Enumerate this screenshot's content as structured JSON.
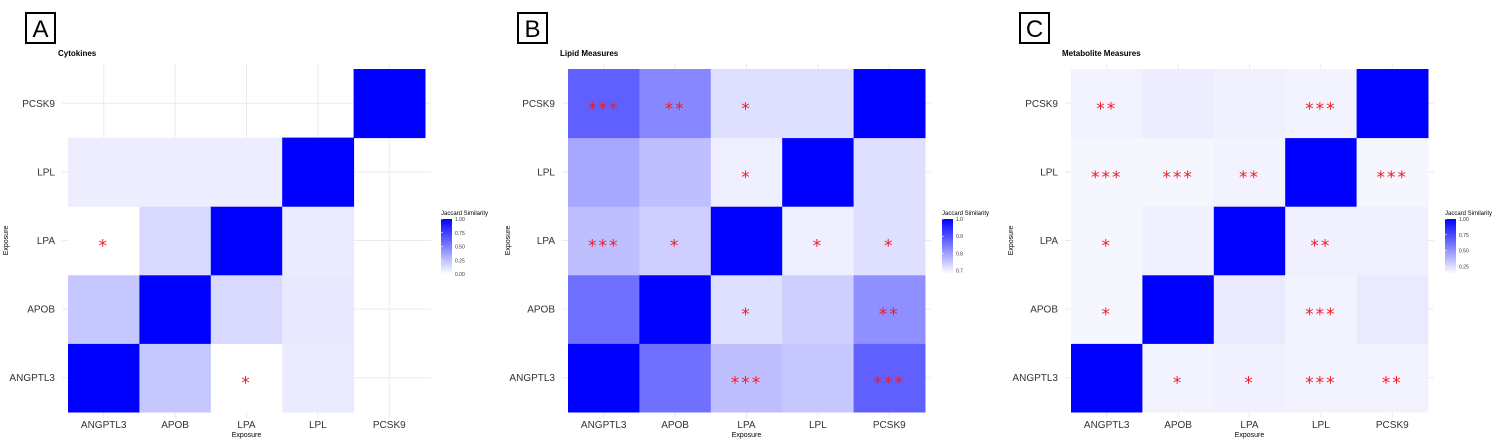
{
  "chart_data": [
    {
      "type": "heatmap",
      "panel_label": "A",
      "title": "Cytokines",
      "xlabel": "Exposure",
      "ylabel": "Exposure",
      "categories": [
        "ANGPTL3",
        "APOB",
        "LPA",
        "LPL",
        "PCSK9"
      ],
      "values": [
        [
          1.0,
          0.22,
          0.0,
          0.07,
          null
        ],
        [
          0.22,
          1.0,
          0.15,
          0.07,
          null
        ],
        [
          0.0,
          0.15,
          1.0,
          0.07,
          null
        ],
        [
          0.08,
          0.09,
          0.08,
          1.0,
          null
        ],
        [
          null,
          null,
          null,
          null,
          1.0
        ]
      ],
      "significance": [
        [
          "",
          "",
          "*",
          "",
          ""
        ],
        [
          "",
          "",
          "",
          "",
          ""
        ],
        [
          "*",
          "",
          "",
          "",
          ""
        ],
        [
          "",
          "",
          "",
          "",
          ""
        ],
        [
          "",
          "",
          "",
          "",
          ""
        ]
      ],
      "legend": {
        "title": "Jaccard Similarity",
        "min": 0.0,
        "max": 1.0,
        "ticks": [
          "1.00",
          "0.75",
          "0.50",
          "0.25",
          "0.00"
        ]
      }
    },
    {
      "type": "heatmap",
      "panel_label": "B",
      "title": "Lipid Measures",
      "xlabel": "Exposure",
      "ylabel": "Exposure",
      "categories": [
        "ANGPTL3",
        "APOB",
        "LPA",
        "LPL",
        "PCSK9"
      ],
      "values": [
        [
          1.0,
          0.86,
          0.76,
          0.79,
          0.88
        ],
        [
          0.86,
          1.0,
          0.74,
          0.76,
          0.83
        ],
        [
          0.76,
          0.72,
          1.0,
          0.7,
          0.72
        ],
        [
          0.75,
          0.74,
          0.7,
          1.0,
          0.72
        ],
        [
          0.88,
          0.82,
          0.72,
          0.72,
          1.0
        ]
      ],
      "significance": [
        [
          "",
          "",
          "***",
          "",
          "***"
        ],
        [
          "",
          "",
          "*",
          "",
          "**"
        ],
        [
          "***",
          "*",
          "",
          "*",
          "*"
        ],
        [
          "",
          "",
          "*",
          "",
          ""
        ],
        [
          "***",
          "**",
          "*",
          "",
          ""
        ]
      ],
      "legend": {
        "title": "Jaccard Similarity",
        "min": 0.68,
        "max": 1.0,
        "ticks": [
          "1.0",
          "0.9",
          "0.8",
          "0.7"
        ]
      }
    },
    {
      "type": "heatmap",
      "panel_label": "C",
      "title": "Metabolite Measures",
      "xlabel": "Exposure",
      "ylabel": "Exposure",
      "categories": [
        "ANGPTL3",
        "APOB",
        "LPA",
        "LPL",
        "PCSK9"
      ],
      "values": [
        [
          1.0,
          0.16,
          0.16,
          0.16,
          0.17
        ],
        [
          0.17,
          1.0,
          0.18,
          0.16,
          0.19
        ],
        [
          0.18,
          0.2,
          1.0,
          0.17,
          0.18
        ],
        [
          0.17,
          0.17,
          0.18,
          1.0,
          0.17
        ],
        [
          0.17,
          0.2,
          0.18,
          0.16,
          1.0
        ]
      ],
      "significance": [
        [
          "",
          "*",
          "*",
          "***",
          "**"
        ],
        [
          "*",
          "",
          "",
          "***",
          ""
        ],
        [
          "*",
          "",
          "",
          "**",
          ""
        ],
        [
          "***",
          "***",
          "**",
          "",
          "***"
        ],
        [
          "**",
          "",
          "",
          "***",
          ""
        ]
      ],
      "legend": {
        "title": "Jaccard Similarity",
        "min": 0.13,
        "max": 1.0,
        "ticks": [
          "1.00",
          "0.75",
          "0.50",
          "0.25"
        ]
      }
    }
  ],
  "colors": {
    "high": "#0000ff",
    "low": "#ffffff",
    "star": "#ee1c25"
  }
}
